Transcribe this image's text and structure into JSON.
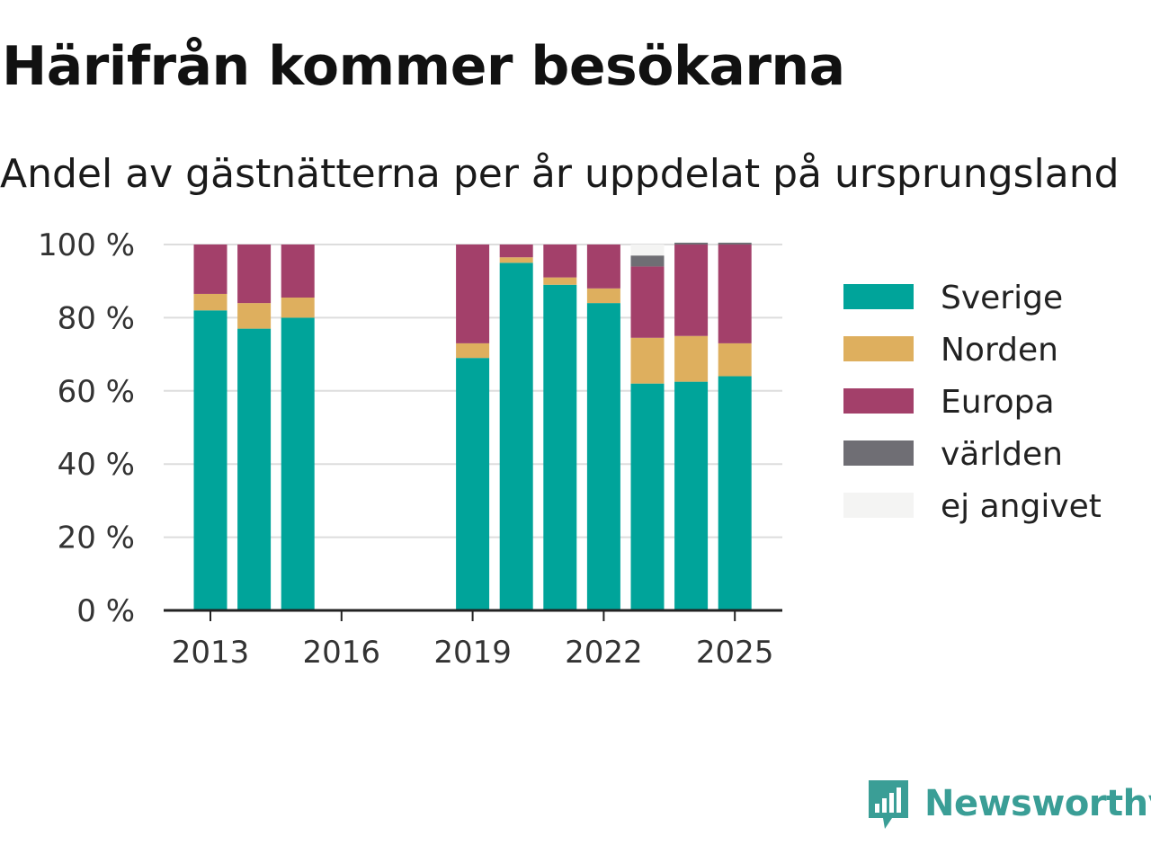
{
  "title": "Härifrån kommer besökarna",
  "subtitle": "Andel av gästnätterna per år uppdelat på ursprungsland",
  "brand": "Newsworthy",
  "chart_data": {
    "type": "bar",
    "stacked": true,
    "categories": [
      "2013",
      "2014",
      "2015",
      "2016",
      "2017",
      "2018",
      "2019",
      "2020",
      "2021",
      "2022",
      "2023",
      "2024",
      "2025"
    ],
    "series": [
      {
        "name": "Sverige",
        "color": "#00a49a",
        "values": [
          82,
          77,
          80,
          null,
          null,
          null,
          69,
          95,
          89,
          84,
          62,
          62.5,
          64
        ]
      },
      {
        "name": "Norden",
        "color": "#deaf5e",
        "values": [
          4.5,
          7,
          5.5,
          null,
          null,
          null,
          4,
          1.5,
          2,
          4,
          12.5,
          12.5,
          9
        ]
      },
      {
        "name": "Europa",
        "color": "#a3406a",
        "values": [
          13.5,
          16,
          14.5,
          null,
          null,
          null,
          27,
          3.5,
          9,
          12,
          19.5,
          25,
          27
        ]
      },
      {
        "name": "världen",
        "color": "#6f6e74",
        "values": [
          0,
          0,
          0,
          null,
          null,
          null,
          0,
          0,
          0,
          0,
          3,
          0.5,
          0.5
        ]
      },
      {
        "name": "ej angivet",
        "color": "#f4f4f3",
        "values": [
          0,
          0,
          0,
          null,
          null,
          null,
          0,
          0,
          0,
          0,
          3,
          0,
          0
        ]
      }
    ],
    "x_tick_labels": [
      "2013",
      "2016",
      "2019",
      "2022",
      "2025"
    ],
    "y_tick_labels": [
      "0 %",
      "20 %",
      "40 %",
      "60 %",
      "80 %",
      "100 %"
    ],
    "ylim": [
      0,
      100
    ],
    "grid": true,
    "legend": "right"
  }
}
